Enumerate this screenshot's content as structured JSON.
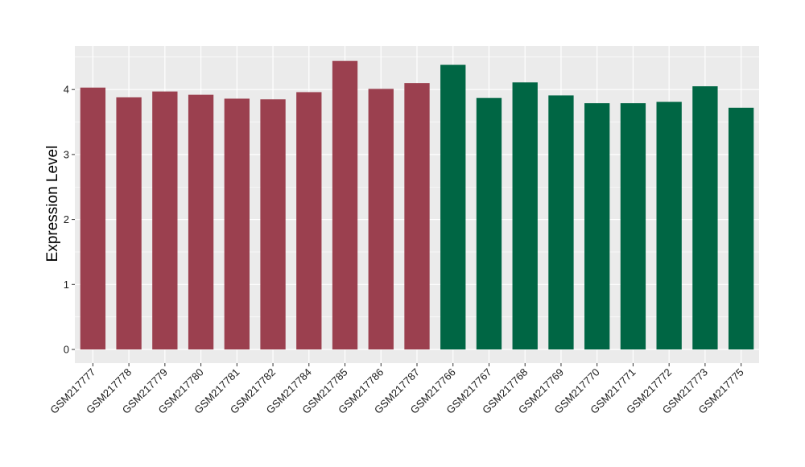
{
  "chart_data": {
    "type": "bar",
    "title": "",
    "xlabel": "",
    "ylabel": "Expression Level",
    "ylim": [
      -0.2,
      4.65
    ],
    "yticks": [
      0,
      1,
      2,
      3,
      4
    ],
    "grid": true,
    "legend": "none",
    "background": "#EBEBEB",
    "gridline_color": "#FFFFFF",
    "categories": [
      "GSM217777",
      "GSM217778",
      "GSM217779",
      "GSM217780",
      "GSM217781",
      "GSM217782",
      "GSM217784",
      "GSM217785",
      "GSM217786",
      "GSM217787",
      "GSM217766",
      "GSM217767",
      "GSM217768",
      "GSM217769",
      "GSM217770",
      "GSM217771",
      "GSM217772",
      "GSM217773",
      "GSM217775"
    ],
    "values": [
      4.03,
      3.88,
      3.97,
      3.92,
      3.86,
      3.85,
      3.96,
      4.44,
      4.01,
      4.1,
      4.38,
      3.87,
      4.11,
      3.91,
      3.79,
      3.79,
      3.81,
      4.05,
      3.72
    ],
    "colors": [
      "#9B404F",
      "#9B404F",
      "#9B404F",
      "#9B404F",
      "#9B404F",
      "#9B404F",
      "#9B404F",
      "#9B404F",
      "#9B404F",
      "#9B404F",
      "#006644",
      "#006644",
      "#006644",
      "#006644",
      "#006644",
      "#006644",
      "#006644",
      "#006644",
      "#006644"
    ]
  }
}
